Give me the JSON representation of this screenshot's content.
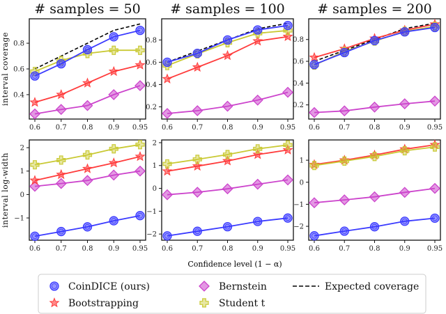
{
  "chart_data": [
    {
      "type": "line",
      "title": "# samples = 50",
      "ylabel": "interval coverage",
      "x": [
        "0.6",
        "0.7",
        "0.8",
        "0.9",
        "0.95"
      ],
      "ylim": [
        0.21,
        0.99
      ],
      "yticks": [
        0.4,
        0.6,
        0.8
      ],
      "series": [
        {
          "name": "CoinDICE (ours)",
          "values": [
            0.545,
            0.64,
            0.75,
            0.85,
            0.9
          ]
        },
        {
          "name": "Bootstrapping",
          "values": [
            0.34,
            0.4,
            0.49,
            0.58,
            0.63
          ]
        },
        {
          "name": "Bernstein",
          "values": [
            0.25,
            0.285,
            0.315,
            0.4,
            0.47
          ]
        },
        {
          "name": "Student t",
          "values": [
            0.58,
            0.665,
            0.72,
            0.745,
            0.745
          ]
        },
        {
          "name": "Expected coverage",
          "values": [
            0.6,
            0.7,
            0.8,
            0.9,
            0.95
          ]
        }
      ]
    },
    {
      "type": "line",
      "title": "# samples = 100",
      "ylabel": "",
      "x": [
        "0.6",
        "0.7",
        "0.8",
        "0.9",
        "0.95"
      ],
      "ylim": [
        0.09,
        0.99
      ],
      "yticks": [
        0.2,
        0.4,
        0.6,
        0.8
      ],
      "series": [
        {
          "name": "CoinDICE (ours)",
          "values": [
            0.6,
            0.68,
            0.8,
            0.89,
            0.93
          ]
        },
        {
          "name": "Bootstrapping",
          "values": [
            0.45,
            0.555,
            0.66,
            0.79,
            0.83
          ]
        },
        {
          "name": "Bernstein",
          "values": [
            0.14,
            0.165,
            0.205,
            0.26,
            0.33
          ]
        },
        {
          "name": "Student t",
          "values": [
            0.57,
            0.675,
            0.775,
            0.86,
            0.885
          ]
        },
        {
          "name": "Expected coverage",
          "values": [
            0.6,
            0.7,
            0.8,
            0.9,
            0.95
          ]
        }
      ]
    },
    {
      "type": "line",
      "title": "# samples = 200",
      "ylabel": "",
      "x": [
        "0.6",
        "0.7",
        "0.8",
        "0.9",
        "0.95"
      ],
      "ylim": [
        0.07,
        0.99
      ],
      "yticks": [
        0.2,
        0.4,
        0.6,
        0.8
      ],
      "series": [
        {
          "name": "CoinDICE (ours)",
          "values": [
            0.57,
            0.68,
            0.79,
            0.87,
            0.91
          ]
        },
        {
          "name": "Bootstrapping",
          "values": [
            0.635,
            0.715,
            0.81,
            0.885,
            0.94
          ]
        },
        {
          "name": "Bernstein",
          "values": [
            0.13,
            0.145,
            0.18,
            0.21,
            0.235
          ]
        },
        {
          "name": "Student t",
          "values": [
            0.565,
            0.69,
            0.785,
            0.875,
            0.92
          ]
        },
        {
          "name": "Expected coverage",
          "values": [
            0.6,
            0.7,
            0.8,
            0.9,
            0.95
          ]
        }
      ]
    },
    {
      "type": "line",
      "title": "",
      "ylabel": "interval log-width",
      "x": [
        "0.6",
        "0.7",
        "0.8",
        "0.9",
        "0.95"
      ],
      "ylim": [
        -1.95,
        2.33
      ],
      "yticks": [
        -1,
        0,
        1,
        2
      ],
      "series": [
        {
          "name": "CoinDICE (ours)",
          "values": [
            -1.78,
            -1.58,
            -1.38,
            -1.12,
            -0.9
          ]
        },
        {
          "name": "Bootstrapping",
          "values": [
            0.6,
            0.85,
            1.1,
            1.35,
            1.62
          ]
        },
        {
          "name": "Bernstein",
          "values": [
            0.35,
            0.47,
            0.6,
            0.83,
            1.0
          ]
        },
        {
          "name": "Student t",
          "values": [
            1.27,
            1.47,
            1.69,
            1.95,
            2.13
          ]
        }
      ]
    },
    {
      "type": "line",
      "title": "",
      "ylabel": "",
      "x": [
        "0.6",
        "0.7",
        "0.8",
        "0.9",
        "0.95"
      ],
      "ylim": [
        -2.27,
        2.12
      ],
      "yticks": [
        -2,
        -1,
        0,
        1,
        2
      ],
      "series": [
        {
          "name": "CoinDICE (ours)",
          "values": [
            -2.08,
            -1.88,
            -1.68,
            -1.45,
            -1.3
          ]
        },
        {
          "name": "Bootstrapping",
          "values": [
            0.75,
            0.97,
            1.2,
            1.48,
            1.68
          ]
        },
        {
          "name": "Bernstein",
          "values": [
            -0.28,
            -0.17,
            -0.02,
            0.18,
            0.37
          ]
        },
        {
          "name": "Student t",
          "values": [
            1.07,
            1.27,
            1.48,
            1.73,
            1.9
          ]
        }
      ]
    },
    {
      "type": "line",
      "title": "",
      "ylabel": "",
      "x": [
        "0.6",
        "0.7",
        "0.8",
        "0.9",
        "0.95"
      ],
      "ylim": [
        -2.63,
        1.92
      ],
      "yticks": [
        -2,
        -1,
        0,
        1
      ],
      "series": [
        {
          "name": "CoinDICE (ours)",
          "values": [
            -2.43,
            -2.22,
            -2.02,
            -1.77,
            -1.63
          ]
        },
        {
          "name": "Bootstrapping",
          "values": [
            0.8,
            1.0,
            1.23,
            1.5,
            1.7
          ]
        },
        {
          "name": "Bernstein",
          "values": [
            -0.93,
            -0.8,
            -0.66,
            -0.46,
            -0.28
          ]
        },
        {
          "name": "Student t",
          "values": [
            0.76,
            0.96,
            1.17,
            1.43,
            1.6
          ]
        }
      ]
    }
  ],
  "xlabel": "Confidence level (1 − α)",
  "legend": {
    "placement": "bottom",
    "entries": [
      {
        "name": "CoinDICE (ours)",
        "marker": "circle",
        "color": "#3a3aff"
      },
      {
        "name": "Bootstrapping",
        "marker": "star",
        "color": "#ff3b3b"
      },
      {
        "name": "Bernstein",
        "marker": "diamond",
        "color": "#cc44cc"
      },
      {
        "name": "Student t",
        "marker": "plus",
        "color": "#c9c934"
      },
      {
        "name": "Expected coverage",
        "marker": "dashed-line",
        "color": "#000000"
      }
    ]
  }
}
